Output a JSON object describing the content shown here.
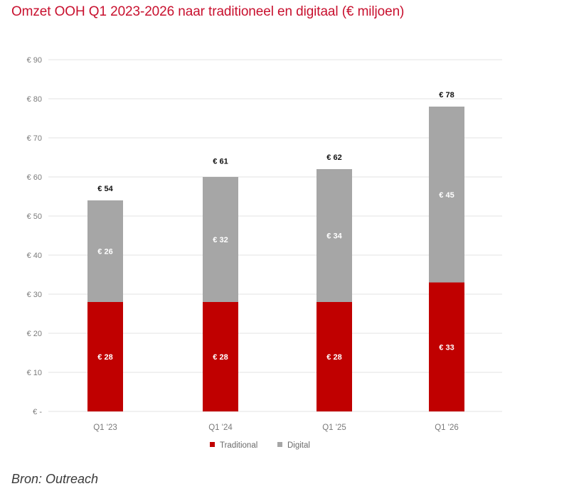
{
  "title": "Omzet OOH Q1 2023-2026 naar traditioneel en digitaal (€ miljoen)",
  "source": "Bron: Outreach",
  "colors": {
    "title": "#c8102e",
    "traditional": "#c00000",
    "digital": "#a6a6a6",
    "grid": "#e3e3e3"
  },
  "chart_data": {
    "type": "bar",
    "stacked": true,
    "title": "Omzet OOH Q1 2023-2026 naar traditioneel en digitaal (€ miljoen)",
    "xlabel": "",
    "ylabel": "",
    "categories": [
      "Q1 '23",
      "Q1 '24",
      "Q1 '25",
      "Q1 '26"
    ],
    "series": [
      {
        "name": "Traditional",
        "values": [
          28,
          28,
          28,
          33
        ],
        "labels": [
          "€ 28",
          "€ 28",
          "€ 28",
          "€ 33"
        ],
        "color": "#c00000"
      },
      {
        "name": "Digital",
        "values": [
          26,
          32,
          34,
          45
        ],
        "labels": [
          "€ 26",
          "€ 32",
          "€ 34",
          "€ 45"
        ],
        "color": "#a6a6a6"
      }
    ],
    "totals": [
      54,
      61,
      62,
      78
    ],
    "total_labels": [
      "€ 54",
      "€ 61",
      "€ 62",
      "€ 78"
    ],
    "ylim": [
      0,
      90
    ],
    "yticks": [
      0,
      10,
      20,
      30,
      40,
      50,
      60,
      70,
      80,
      90
    ],
    "ytick_labels": [
      "€ -",
      "€ 10",
      "€ 20",
      "€ 30",
      "€ 40",
      "€ 50",
      "€ 60",
      "€ 70",
      "€ 80",
      "€ 90"
    ],
    "grid": true,
    "legend": {
      "position": "bottom",
      "entries": [
        "Traditional",
        "Digital"
      ]
    }
  }
}
